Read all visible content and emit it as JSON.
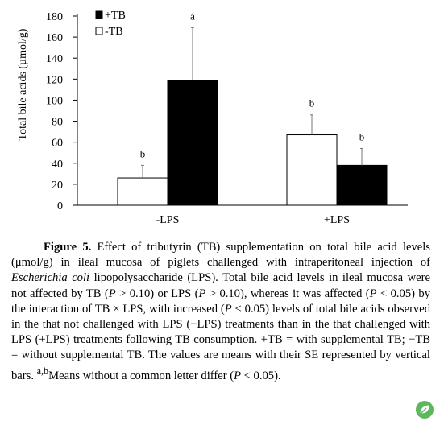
{
  "chart_data": {
    "type": "bar",
    "categories": [
      "-LPS",
      "+LPS"
    ],
    "ylabel": "Total bile acids (µmol/g)",
    "ylim": [
      0,
      180
    ],
    "yticks": [
      0,
      20,
      40,
      60,
      80,
      100,
      120,
      140,
      160,
      180
    ],
    "legend_position": "top-left",
    "grid": false,
    "series": [
      {
        "name": "-TB",
        "fill": "#ffffff",
        "values": [
          26,
          67
        ],
        "errors": [
          12,
          19
        ],
        "letters": [
          "b",
          "b"
        ]
      },
      {
        "name": "+TB",
        "fill": "#000000",
        "values": [
          119,
          38
        ],
        "errors": [
          50,
          16
        ],
        "letters": [
          "a",
          "b"
        ]
      }
    ],
    "legend": [
      {
        "label": "+TB",
        "fill": "#000000"
      },
      {
        "label": "-TB",
        "fill": "#ffffff"
      }
    ]
  },
  "caption": {
    "label": "Figure 5.",
    "p1": " Effect of tributyrin (TB) supplementation on total bile acid levels (μmol/g) in ileal mucosa of piglets challenged with intraperitoneal injection of ",
    "species": "Escherichia coli",
    "p2": " lipopolysaccharide (LPS). Total bile acid levels in ileal mucosa were not affected by TB (",
    "P1": "P",
    "p3": " > 0.10) or LPS (",
    "P2": "P",
    "p4": " > 0.10), whereas it was affected (",
    "P3": "P",
    "p5": " < 0.05) by the interaction of TB × LPS, with increased (",
    "P4": "P",
    "p6": " < 0.05) levels of total bile acids observed in the that not challenged with LPS (−LPS) treatments than in the that challenged with LPS (+LPS) treatments following TB consumption. +TB = with supplemental TB; −TB = without supplemental TB. The values are means with their SE represented by vertical bars. ",
    "sup": "a,b",
    "p7": "Means without a common letter differ (",
    "P5": "P",
    "p8": " < 0.05)."
  },
  "badge": {
    "icon": "leaf-icon",
    "color": "#5cb85c"
  }
}
